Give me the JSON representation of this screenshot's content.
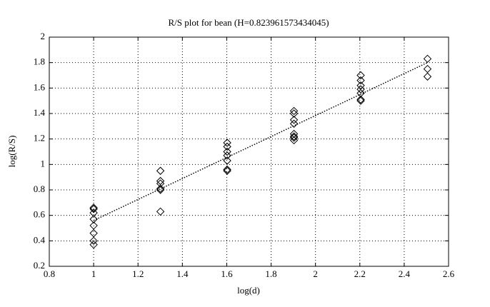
{
  "chart_data": {
    "type": "scatter",
    "title": "R/S plot for bean (H=0.823961573434045)",
    "x_label": "log(d)",
    "y_label": "log(R/S)",
    "xlim": [
      0.8,
      2.6
    ],
    "xticks": [
      0.8,
      1,
      1.2,
      1.4,
      1.6,
      1.8,
      2,
      2.2,
      2.4,
      2.6
    ],
    "ylim": [
      0.2,
      2
    ],
    "yticks": [
      0.2,
      0.4,
      0.6,
      0.8,
      1,
      1.2,
      1.4,
      1.6,
      1.8,
      2
    ],
    "grid": true,
    "series": [
      {
        "type": "scatter",
        "marker": "diamond",
        "color": "#000000",
        "x": [
          1,
          1,
          1,
          1,
          1,
          1,
          1,
          1,
          1.301,
          1.301,
          1.301,
          1.301,
          1.301,
          1.301,
          1.602,
          1.602,
          1.602,
          1.602,
          1.602,
          1.602,
          1.602,
          1.903,
          1.903,
          1.903,
          1.903,
          1.903,
          1.903,
          1.903,
          1.903,
          2.204,
          2.204,
          2.204,
          2.204,
          2.204,
          2.204,
          2.204,
          2.505,
          2.505,
          2.505
        ],
        "values": [
          0.66,
          0.65,
          0.62,
          0.57,
          0.52,
          0.46,
          0.4,
          0.37,
          0.95,
          0.87,
          0.85,
          0.81,
          0.8,
          0.63,
          1.17,
          1.14,
          1.1,
          1.07,
          1.03,
          0.96,
          0.95,
          1.42,
          1.4,
          1.35,
          1.32,
          1.24,
          1.22,
          1.21,
          1.19,
          1.7,
          1.66,
          1.62,
          1.59,
          1.56,
          1.51,
          1.5,
          1.83,
          1.75,
          1.69
        ]
      },
      {
        "type": "line",
        "style": "dotted",
        "color": "#000000",
        "x": [
          1,
          2.505
        ],
        "values": [
          0.56,
          1.8
        ]
      }
    ]
  }
}
